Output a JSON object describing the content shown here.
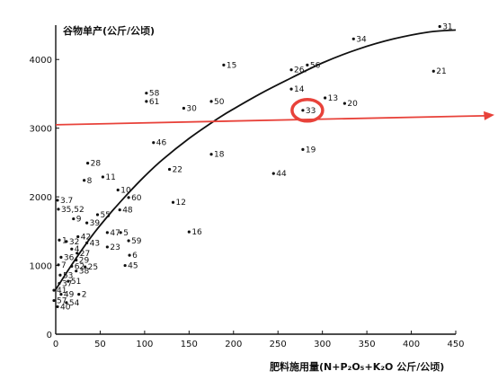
{
  "chart_data": {
    "type": "scatter",
    "ylabel": "谷物单产(公斤/公顷)",
    "xlabel": "肥料施用量(N+P₂O₅+K₂O 公斤/公顷)",
    "xlim": [
      0,
      450
    ],
    "ylim": [
      0,
      4500
    ],
    "x_ticks": [
      {
        "value": 0,
        "label": "0"
      },
      {
        "value": 50,
        "label": "50"
      },
      {
        "value": 100,
        "label": "100"
      },
      {
        "value": 150,
        "label": "150"
      },
      {
        "value": 200,
        "label": "200"
      },
      {
        "value": 250,
        "label": "250"
      },
      {
        "value": 300,
        "label": "300"
      },
      {
        "value": 350,
        "label": "350"
      },
      {
        "value": 400,
        "label": "400"
      },
      {
        "value": 450,
        "label": "450"
      }
    ],
    "y_ticks": [
      {
        "value": 0,
        "label": "0"
      },
      {
        "value": 1000,
        "label": "1000"
      },
      {
        "value": 2000,
        "label": "2000"
      },
      {
        "value": 3000,
        "label": "3000"
      },
      {
        "value": 4000,
        "label": "4000"
      }
    ],
    "points": [
      {
        "label": "31",
        "x": 432,
        "y": 4480
      },
      {
        "label": "34",
        "x": 335,
        "y": 4300
      },
      {
        "label": "56",
        "x": 283,
        "y": 3920
      },
      {
        "label": "15",
        "x": 189,
        "y": 3920
      },
      {
        "label": "26.",
        "x": 265,
        "y": 3850
      },
      {
        "label": "21",
        "x": 425,
        "y": 3830
      },
      {
        "label": "14",
        "x": 265,
        "y": 3570
      },
      {
        "label": "58",
        "x": 102,
        "y": 3510
      },
      {
        "label": "13",
        "x": 303,
        "y": 3440
      },
      {
        "label": "61",
        "x": 102,
        "y": 3390
      },
      {
        "label": "50",
        "x": 175,
        "y": 3390
      },
      {
        "label": "20",
        "x": 325,
        "y": 3360
      },
      {
        "label": "30",
        "x": 144,
        "y": 3290
      },
      {
        "label": "33",
        "x": 278,
        "y": 3260
      },
      {
        "label": "46",
        "x": 110,
        "y": 2790
      },
      {
        "label": "19",
        "x": 278,
        "y": 2690
      },
      {
        "label": "18",
        "x": 175,
        "y": 2620
      },
      {
        "label": "28",
        "x": 36,
        "y": 2490
      },
      {
        "label": "22",
        "x": 128,
        "y": 2400
      },
      {
        "label": "44",
        "x": 245,
        "y": 2340
      },
      {
        "label": "11",
        "x": 53,
        "y": 2290
      },
      {
        "label": "8",
        "x": 32,
        "y": 2240
      },
      {
        "label": "10",
        "x": 70,
        "y": 2100
      },
      {
        "label": "60",
        "x": 82,
        "y": 1990
      },
      {
        "label": "3.7",
        "x": 2,
        "y": 1950
      },
      {
        "label": "12",
        "x": 132,
        "y": 1920
      },
      {
        "label": "35,52",
        "x": 3,
        "y": 1820
      },
      {
        "label": "48",
        "x": 72,
        "y": 1810
      },
      {
        "label": "55",
        "x": 47,
        "y": 1740
      },
      {
        "label": "9",
        "x": 20,
        "y": 1680
      },
      {
        "label": "39",
        "x": 35,
        "y": 1620
      },
      {
        "label": "47",
        "x": 58,
        "y": 1480
      },
      {
        "label": "5",
        "x": 73,
        "y": 1480
      },
      {
        "label": "42",
        "x": 25,
        "y": 1420
      },
      {
        "label": "16",
        "x": 150,
        "y": 1490
      },
      {
        "label": "1",
        "x": 4,
        "y": 1370
      },
      {
        "label": "32",
        "x": 12,
        "y": 1350
      },
      {
        "label": "43",
        "x": 35,
        "y": 1330
      },
      {
        "label": "59",
        "x": 82,
        "y": 1360
      },
      {
        "label": "23",
        "x": 58,
        "y": 1270
      },
      {
        "label": "4",
        "x": 18,
        "y": 1240
      },
      {
        "label": "27",
        "x": 24,
        "y": 1180
      },
      {
        "label": "6",
        "x": 83,
        "y": 1150
      },
      {
        "label": "36",
        "x": 6,
        "y": 1120
      },
      {
        "label": "29",
        "x": 23,
        "y": 1080
      },
      {
        "label": "45",
        "x": 78,
        "y": 1000
      },
      {
        "label": "7",
        "x": 3,
        "y": 1010
      },
      {
        "label": "62",
        "x": 18,
        "y": 990
      },
      {
        "label": "25",
        "x": 33,
        "y": 980
      },
      {
        "label": "38",
        "x": 23,
        "y": 920
      },
      {
        "label": "53",
        "x": 5,
        "y": 860
      },
      {
        "label": "51",
        "x": 14,
        "y": 770
      },
      {
        "label": "37",
        "x": 4,
        "y": 740
      },
      {
        "label": "41",
        "x": -2,
        "y": 640
      },
      {
        "label": "49",
        "x": 6,
        "y": 580
      },
      {
        "label": "2",
        "x": 26,
        "y": 580
      },
      {
        "label": "57",
        "x": -2,
        "y": 490
      },
      {
        "label": "54",
        "x": 12,
        "y": 460
      },
      {
        "label": "40",
        "x": 2,
        "y": 400
      }
    ],
    "curve": {
      "x": [
        0,
        20,
        40,
        60,
        80,
        100,
        120,
        150,
        180,
        200,
        230,
        260,
        300,
        340,
        380,
        420,
        450
      ],
      "y": [
        650,
        1050,
        1420,
        1740,
        2030,
        2300,
        2540,
        2850,
        3120,
        3280,
        3500,
        3700,
        3950,
        4150,
        4300,
        4400,
        4430
      ]
    },
    "reference_line": {
      "y": 3050
    },
    "highlight": {
      "label": "33"
    },
    "colors": {
      "highlight": "#e8423a",
      "reference": "#e8423a",
      "ink": "#111111"
    }
  }
}
